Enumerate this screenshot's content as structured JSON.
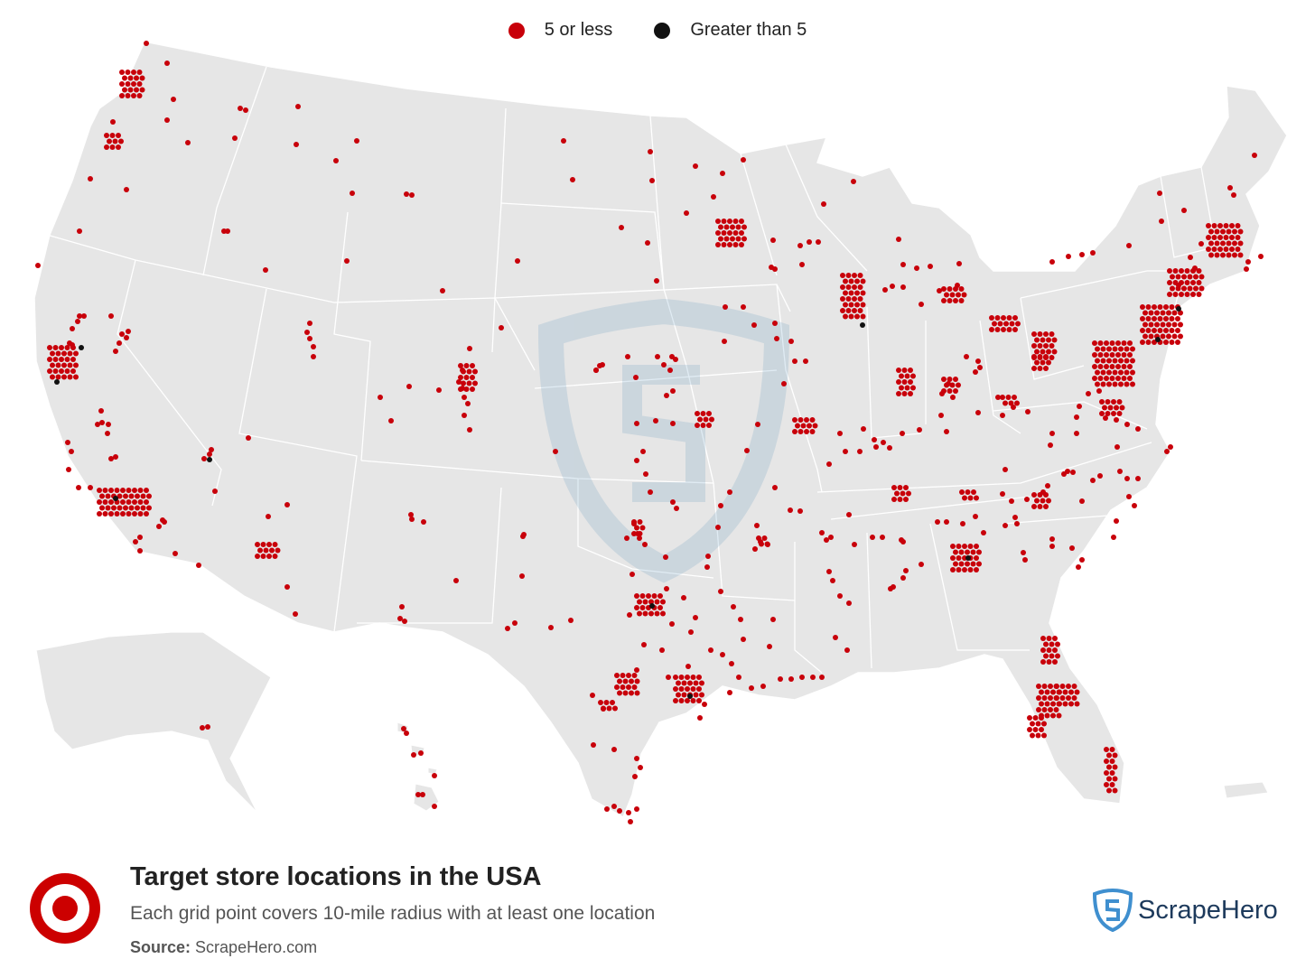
{
  "legend": {
    "items": [
      {
        "label": "5 or less",
        "color": "#c8000a"
      },
      {
        "label": "Greater than 5",
        "color": "#111111"
      }
    ]
  },
  "footer": {
    "title": "Target store locations in the USA",
    "subtitle": "Each grid point covers 10-mile radius with at least one location",
    "source_label": "Source:",
    "source_value": "ScrapeHero.com",
    "brand_name": "ScrapeHero"
  },
  "colors": {
    "land": "#e6e6e6",
    "borders": "#ffffff",
    "low": "#c8000a",
    "high": "#111111",
    "target_red": "#cc0000",
    "brand_blue": "#3f8fcf",
    "brand_text": "#1d3a5c"
  },
  "icons": {
    "footer_logo": "target-bullseye-icon",
    "brand_logo": "scrapehero-shield-icon",
    "watermark": "scrapehero-shield-watermark"
  }
}
